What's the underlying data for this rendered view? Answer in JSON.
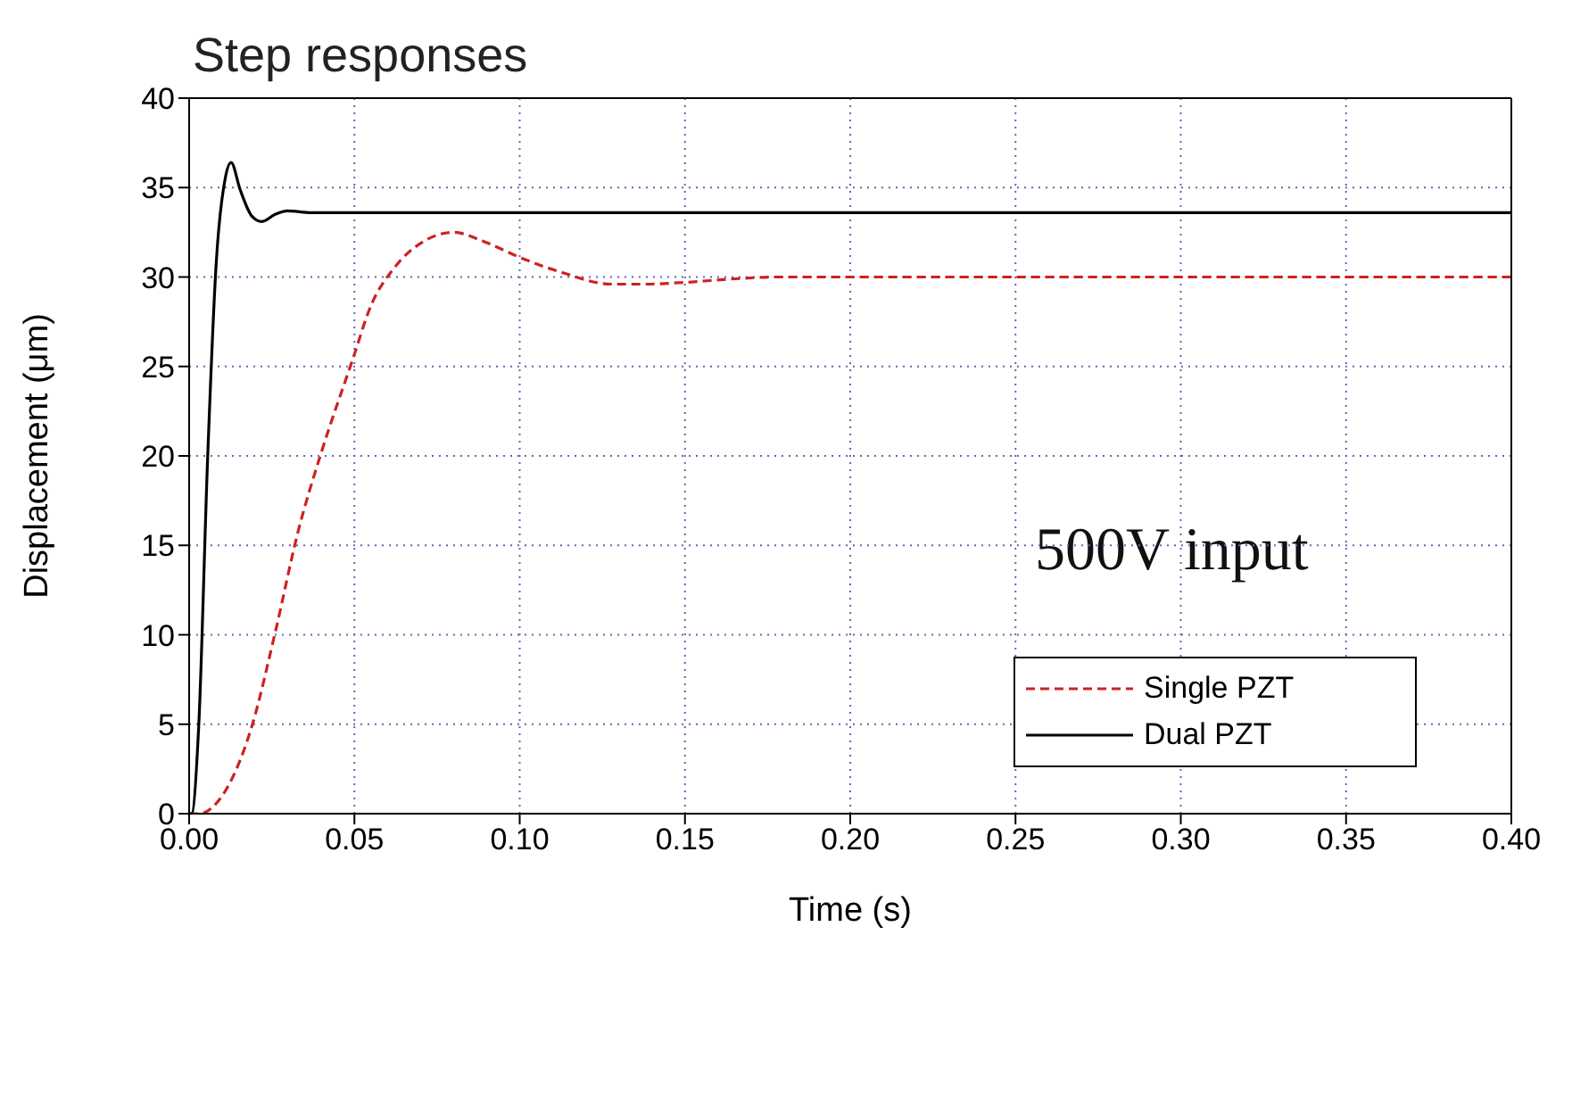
{
  "chart_data": {
    "type": "line",
    "title": "Step responses",
    "xlabel": "Time (s)",
    "ylabel": "Displacement (μm)",
    "annotations": [
      "500V input"
    ],
    "xlim": [
      0,
      0.4
    ],
    "xticks": [
      {
        "value": 0,
        "label": "0.00"
      },
      {
        "value": 0.05,
        "label": "0.05"
      },
      {
        "value": 0.1,
        "label": "0.10"
      },
      {
        "value": 0.15,
        "label": "0.15"
      },
      {
        "value": 0.2,
        "label": "0.20"
      },
      {
        "value": 0.25,
        "label": "0.25"
      },
      {
        "value": 0.3,
        "label": "0.30"
      },
      {
        "value": 0.35,
        "label": "0.35"
      },
      {
        "value": 0.4,
        "label": "0.40"
      }
    ],
    "ylim": [
      0,
      40
    ],
    "yticks": [
      0,
      5,
      10,
      15,
      20,
      25,
      30,
      35,
      40
    ],
    "grid": true,
    "legend": "right",
    "marker": "none",
    "series": [
      {
        "name": "Single PZT",
        "color": "#cc2222",
        "line_style": "dashed",
        "x": [
          0,
          0.003,
          0.01,
          0.019,
          0.026,
          0.033,
          0.04,
          0.0495,
          0.055,
          0.062,
          0.071,
          0.08,
          0.089,
          0.1,
          0.112,
          0.128,
          0.137,
          0.15,
          0.165,
          0.178,
          0.21,
          0.25,
          0.3,
          0.35,
          0.4
        ],
        "values": [
          0,
          0,
          1,
          4.9,
          10.1,
          15.8,
          20.2,
          25.4,
          28.4,
          30.5,
          32,
          32.5,
          32,
          31.1,
          30.3,
          29.6,
          29.6,
          29.7,
          29.9,
          30,
          30,
          30,
          30,
          30,
          30
        ]
      },
      {
        "name": "Dual PZT",
        "color": "#000000",
        "line_style": "solid",
        "x": [
          0,
          0.0007,
          0.0029,
          0.0056,
          0.0082,
          0.0109,
          0.0127,
          0.0154,
          0.019,
          0.022,
          0.026,
          0.0297,
          0.037,
          0.1,
          0.2,
          0.3,
          0.4
        ],
        "values": [
          0,
          0,
          4.9,
          19.9,
          30.8,
          35.5,
          36.4,
          34.9,
          33.4,
          33.1,
          33.5,
          33.7,
          33.6,
          33.6,
          33.6,
          33.6,
          33.6
        ]
      }
    ]
  }
}
